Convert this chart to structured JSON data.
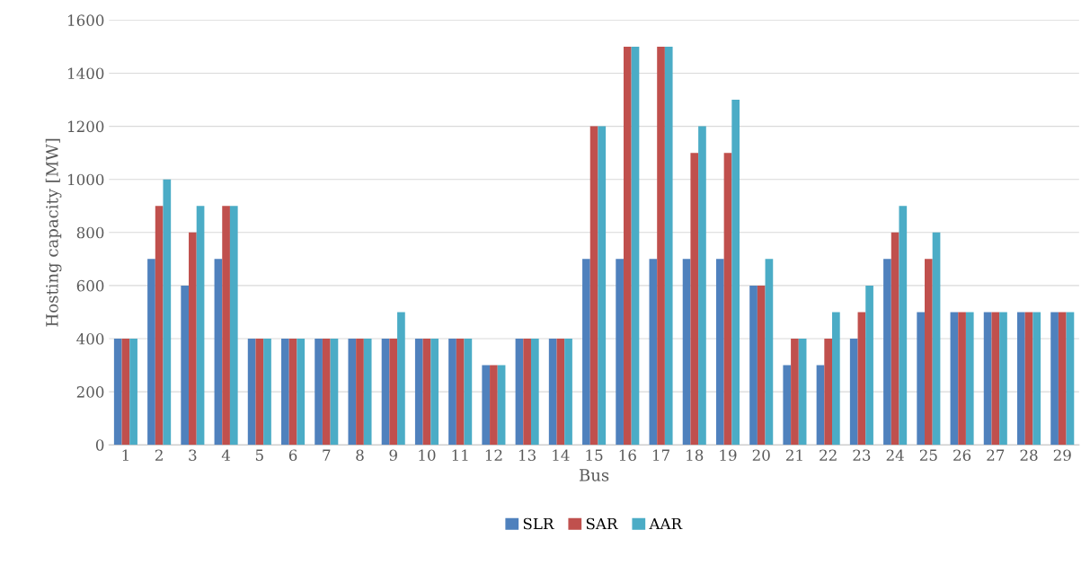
{
  "chart_data": {
    "type": "bar",
    "xlabel": "Bus",
    "ylabel": "Hosting capacity [MW]",
    "categories": [
      "1",
      "2",
      "3",
      "4",
      "5",
      "6",
      "7",
      "8",
      "9",
      "10",
      "11",
      "12",
      "13",
      "14",
      "15",
      "16",
      "17",
      "18",
      "19",
      "20",
      "21",
      "22",
      "23",
      "24",
      "25",
      "26",
      "27",
      "28",
      "29"
    ],
    "series": [
      {
        "name": "SLR",
        "color": "#4f81bd",
        "values": [
          400,
          700,
          600,
          700,
          400,
          400,
          400,
          400,
          400,
          400,
          400,
          300,
          400,
          400,
          700,
          700,
          700,
          700,
          700,
          600,
          300,
          300,
          400,
          700,
          500,
          500,
          500,
          500,
          500
        ]
      },
      {
        "name": "SAR",
        "color": "#c0504d",
        "values": [
          400,
          900,
          800,
          900,
          400,
          400,
          400,
          400,
          400,
          400,
          400,
          300,
          400,
          400,
          1200,
          1500,
          1500,
          1100,
          1100,
          600,
          400,
          400,
          500,
          800,
          700,
          500,
          500,
          500,
          500
        ]
      },
      {
        "name": "AAR",
        "color": "#4bacc6",
        "values": [
          400,
          1000,
          900,
          900,
          400,
          400,
          400,
          400,
          500,
          400,
          400,
          300,
          400,
          400,
          1200,
          1500,
          1500,
          1200,
          1300,
          700,
          400,
          500,
          600,
          900,
          800,
          500,
          500,
          500,
          500
        ]
      }
    ],
    "ylim": [
      0,
      1600
    ],
    "yticks": [
      0,
      200,
      400,
      600,
      800,
      1000,
      1200,
      1400,
      1600
    ],
    "grid": "y",
    "legend": "bottom"
  }
}
